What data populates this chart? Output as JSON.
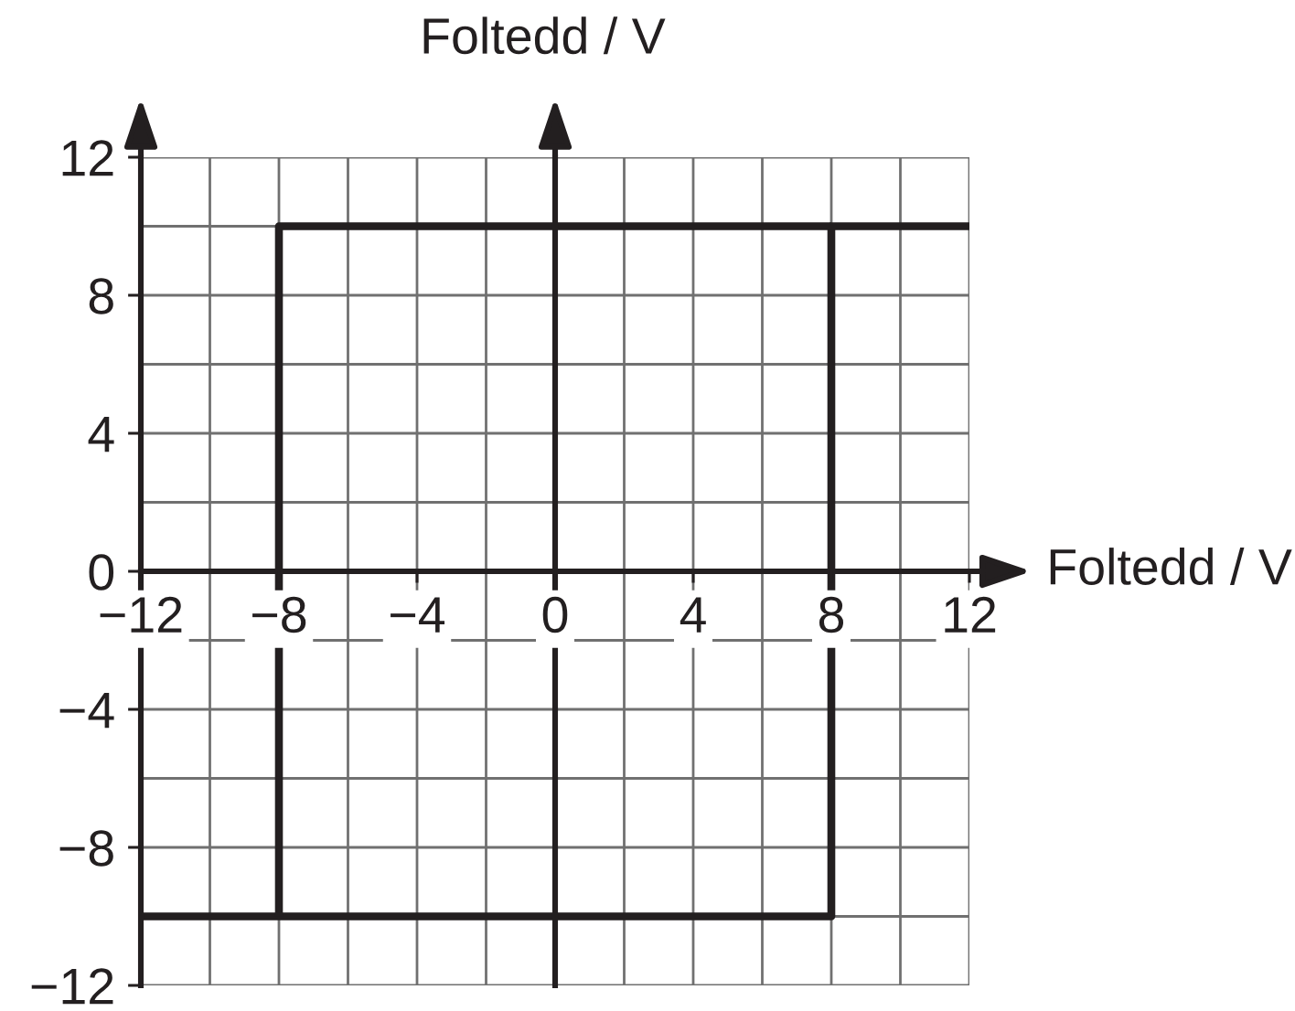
{
  "chart_data": {
    "type": "line",
    "xlabel": "Foltedd / V",
    "ylabel": "Foltedd / V",
    "xlim": [
      -12,
      12
    ],
    "ylim": [
      -12,
      12
    ],
    "xticks": [
      {
        "value": -12,
        "label": "−12"
      },
      {
        "value": -10,
        "label": null
      },
      {
        "value": -8,
        "label": "−8"
      },
      {
        "value": -6,
        "label": null
      },
      {
        "value": -4,
        "label": "−4"
      },
      {
        "value": -2,
        "label": null
      },
      0,
      {
        "value": 2,
        "label": null
      },
      4,
      {
        "value": 6,
        "label": null
      },
      8,
      {
        "value": 10,
        "label": null
      },
      12
    ],
    "yticks": [
      {
        "value": -12,
        "label": "−12"
      },
      {
        "value": -10,
        "label": null
      },
      {
        "value": -8,
        "label": "−8"
      },
      {
        "value": -6,
        "label": null
      },
      {
        "value": -4,
        "label": "−4"
      },
      {
        "value": -2,
        "label": null
      },
      0,
      {
        "value": 2,
        "label": null
      },
      4,
      {
        "value": 6,
        "label": null
      },
      8,
      {
        "value": 10,
        "label": null
      },
      12
    ],
    "grid": true,
    "series": [
      {
        "color": "#231f20",
        "x": [
          -12,
          8,
          8,
          12
        ],
        "values": [
          -10,
          -10,
          10,
          10
        ]
      },
      {
        "color": "#231f20",
        "x": [
          8,
          -8,
          -8
        ],
        "values": [
          10,
          10,
          -10
        ]
      }
    ]
  }
}
